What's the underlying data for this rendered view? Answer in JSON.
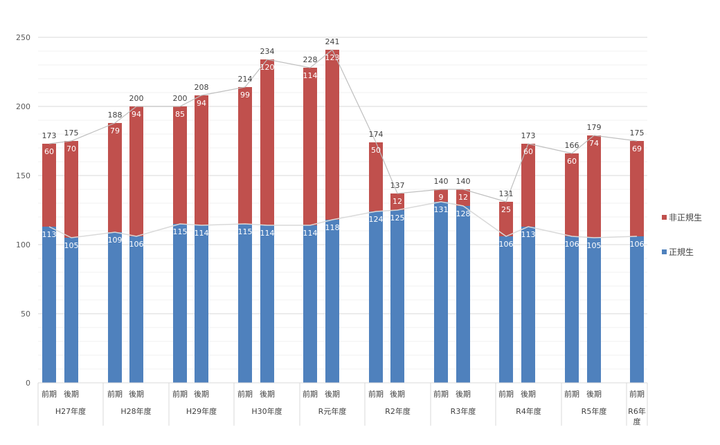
{
  "chart_data": {
    "type": "bar",
    "stacked": true,
    "title": "",
    "xlabel": "",
    "ylabel": "",
    "ylim": [
      0,
      250
    ],
    "yticks": [
      0,
      50,
      100,
      150,
      200,
      250
    ],
    "grid": true,
    "legend_position": "right",
    "groups": [
      {
        "name": "H27年度",
        "categories": [
          "前期",
          "後期"
        ]
      },
      {
        "name": "H28年度",
        "categories": [
          "前期",
          "後期"
        ]
      },
      {
        "name": "H29年度",
        "categories": [
          "前期",
          "後期"
        ]
      },
      {
        "name": "H30年度",
        "categories": [
          "前期",
          "後期"
        ]
      },
      {
        "name": "R元年度",
        "categories": [
          "前期",
          "後期"
        ]
      },
      {
        "name": "R2年度",
        "categories": [
          "前期",
          "後期"
        ]
      },
      {
        "name": "R3年度",
        "categories": [
          "前期",
          "後期"
        ]
      },
      {
        "name": "R4年度",
        "categories": [
          "前期",
          "後期"
        ]
      },
      {
        "name": "R5年度",
        "categories": [
          "前期",
          "後期"
        ]
      },
      {
        "name": "R6年度",
        "categories": [
          "前期"
        ]
      }
    ],
    "series": [
      {
        "name": "正規生",
        "color": "#4f81bd",
        "values": [
          113,
          105,
          109,
          106,
          115,
          114,
          115,
          114,
          114,
          118,
          124,
          125,
          131,
          128,
          106,
          113,
          106,
          105,
          106
        ]
      },
      {
        "name": "非正規生",
        "color": "#c0504d",
        "values": [
          60,
          70,
          79,
          94,
          85,
          94,
          99,
          120,
          114,
          123,
          50,
          12,
          9,
          12,
          25,
          60,
          60,
          74,
          69
        ]
      }
    ],
    "totals": [
      173,
      175,
      188,
      200,
      200,
      208,
      214,
      234,
      228,
      241,
      174,
      137,
      140,
      140,
      131,
      173,
      166,
      179,
      175
    ],
    "legend": [
      "非正規生",
      "正規生"
    ]
  }
}
